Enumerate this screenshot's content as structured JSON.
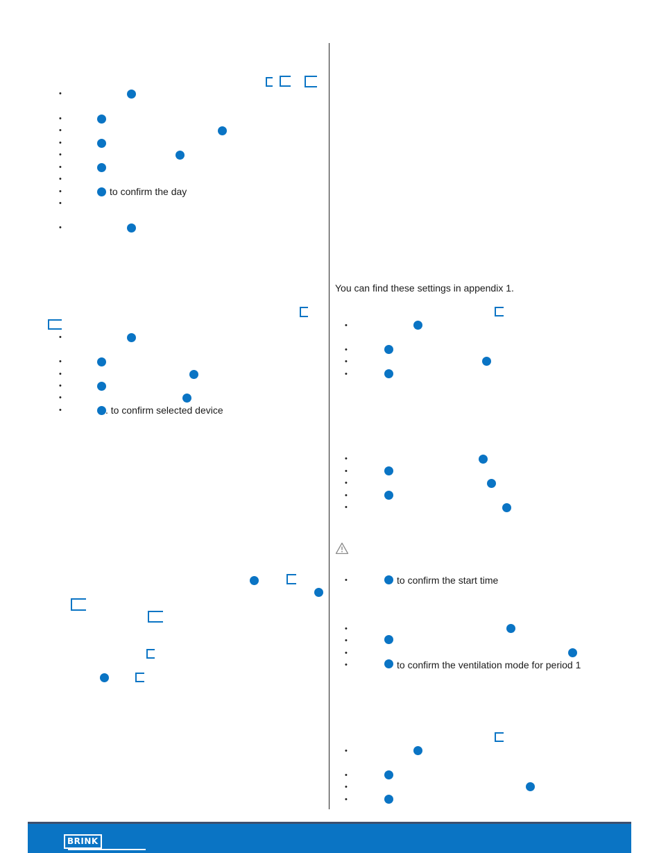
{
  "left_column": {
    "day_confirm_text": "to confirm the day",
    "device_confirm_text": ". to confirm selected device"
  },
  "right_column": {
    "appendix_text": "You can find these settings in appendix 1.",
    "start_time_confirm_text": "to confirm the start time",
    "ventilation_confirm_text": "to confirm the ventilation mode for period 1"
  },
  "footer": {
    "brand": "BRINK"
  },
  "icons": {
    "button": "round-button-icon",
    "menu": "menu-bracket-icon",
    "warning": "warning-triangle-icon"
  },
  "colors": {
    "accent": "#0a74c4",
    "footer_border": "#3d4f6e"
  }
}
